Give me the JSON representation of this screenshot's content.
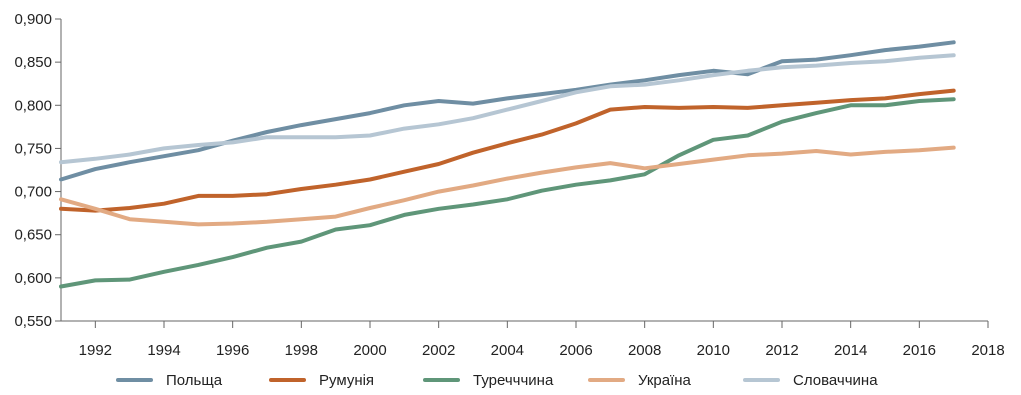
{
  "chart_data": {
    "type": "line",
    "title": "",
    "xlabel": "",
    "ylabel": "",
    "x": [
      1991,
      1992,
      1993,
      1994,
      1995,
      1996,
      1997,
      1998,
      1999,
      2000,
      2001,
      2002,
      2003,
      2004,
      2005,
      2006,
      2007,
      2008,
      2009,
      2010,
      2011,
      2012,
      2013,
      2014,
      2015,
      2016,
      2017
    ],
    "x_ticks": [
      1992,
      1994,
      1996,
      1998,
      2000,
      2002,
      2004,
      2006,
      2008,
      2010,
      2012,
      2014,
      2016,
      2018
    ],
    "x_tick_labels": [
      "1992",
      "1994",
      "1996",
      "1998",
      "2000",
      "2002",
      "2004",
      "2006",
      "2008",
      "2010",
      "2012",
      "2014",
      "2016",
      "2018"
    ],
    "xlim": [
      1991,
      2018
    ],
    "ylim": [
      0.55,
      0.9
    ],
    "y_ticks": [
      0.55,
      0.6,
      0.65,
      0.7,
      0.75,
      0.8,
      0.85,
      0.9
    ],
    "y_tick_labels": [
      "0,550",
      "0,600",
      "0,650",
      "0,700",
      "0,750",
      "0,800",
      "0,850",
      "0,900"
    ],
    "grid": false,
    "legend_position": "bottom",
    "series": [
      {
        "name": "Польща",
        "color": "#6f8ea3",
        "values": [
          0.714,
          0.726,
          0.734,
          0.741,
          0.748,
          0.759,
          0.769,
          0.777,
          0.784,
          0.791,
          0.8,
          0.805,
          0.802,
          0.808,
          0.813,
          0.818,
          0.824,
          0.829,
          0.835,
          0.84,
          0.836,
          0.851,
          0.853,
          0.858,
          0.864,
          0.868,
          0.873
        ]
      },
      {
        "name": "Румунія",
        "color": "#c0632b",
        "values": [
          0.68,
          0.678,
          0.681,
          0.686,
          0.695,
          0.695,
          0.697,
          0.703,
          0.708,
          0.714,
          0.723,
          0.732,
          0.745,
          0.756,
          0.766,
          0.779,
          0.795,
          0.798,
          0.797,
          0.798,
          0.797,
          0.8,
          0.803,
          0.806,
          0.808,
          0.813,
          0.817
        ]
      },
      {
        "name": "Туречччина",
        "color": "#5f9679",
        "values": [
          0.59,
          0.597,
          0.598,
          0.607,
          0.615,
          0.624,
          0.635,
          0.642,
          0.656,
          0.661,
          0.673,
          0.68,
          0.685,
          0.691,
          0.701,
          0.708,
          0.713,
          0.72,
          0.742,
          0.76,
          0.765,
          0.781,
          0.791,
          0.8,
          0.8,
          0.805,
          0.807
        ]
      },
      {
        "name": "Україна",
        "color": "#e2aa83",
        "values": [
          0.691,
          0.68,
          0.668,
          0.665,
          0.662,
          0.663,
          0.665,
          0.668,
          0.671,
          0.681,
          0.69,
          0.7,
          0.707,
          0.715,
          0.722,
          0.728,
          0.733,
          0.727,
          0.732,
          0.737,
          0.742,
          0.744,
          0.747,
          0.743,
          0.746,
          0.748,
          0.751
        ]
      },
      {
        "name": "Словаччина",
        "color": "#b6c6d3",
        "values": [
          0.734,
          0.738,
          0.743,
          0.75,
          0.754,
          0.757,
          0.763,
          0.763,
          0.763,
          0.765,
          0.773,
          0.778,
          0.785,
          0.795,
          0.805,
          0.815,
          0.822,
          0.824,
          0.829,
          0.835,
          0.84,
          0.844,
          0.846,
          0.849,
          0.851,
          0.855,
          0.858
        ]
      }
    ]
  }
}
